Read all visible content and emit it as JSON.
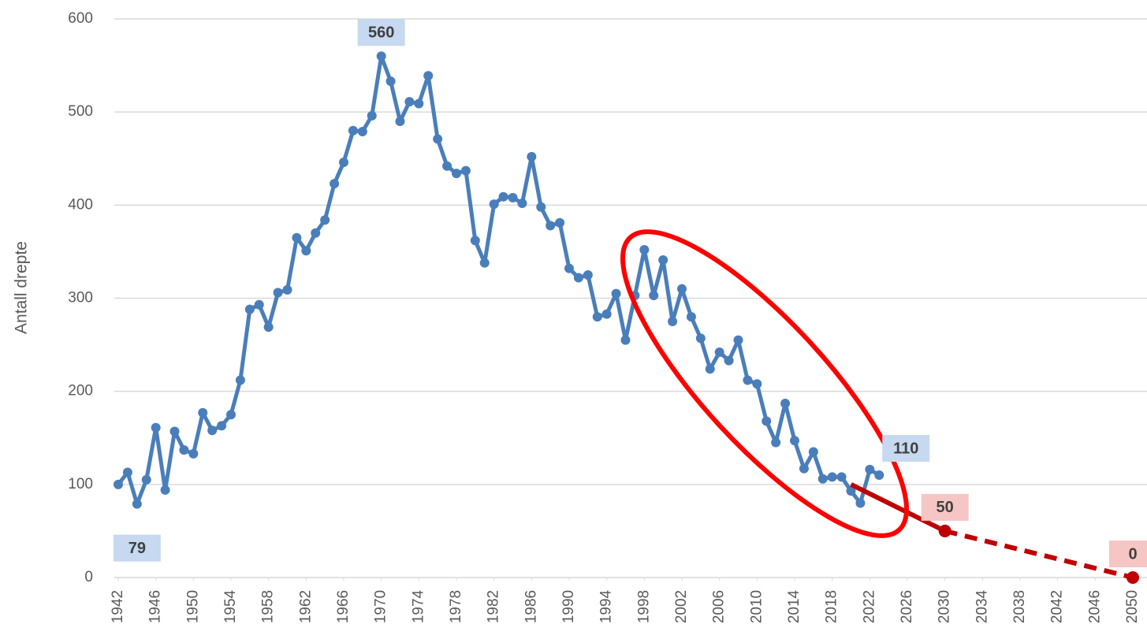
{
  "chart_data": {
    "type": "line",
    "y_label": "Antall drepte",
    "xlim": [
      1942,
      2050
    ],
    "ylim": [
      0,
      600
    ],
    "yticks": [
      0,
      100,
      200,
      300,
      400,
      500,
      600
    ],
    "xticks": [
      1942,
      1946,
      1950,
      1954,
      1958,
      1962,
      1966,
      1970,
      1974,
      1978,
      1982,
      1986,
      1990,
      1994,
      1998,
      2002,
      2006,
      2010,
      2014,
      2018,
      2022,
      2026,
      2030,
      2034,
      2038,
      2042,
      2046,
      2050
    ],
    "grid": true,
    "series": [
      {
        "color": "#4a7ebb",
        "markers": true,
        "x": [
          1942,
          1943,
          1944,
          1945,
          1946,
          1947,
          1948,
          1949,
          1950,
          1951,
          1952,
          1953,
          1954,
          1955,
          1956,
          1957,
          1958,
          1959,
          1960,
          1961,
          1962,
          1963,
          1964,
          1965,
          1966,
          1967,
          1968,
          1969,
          1970,
          1971,
          1972,
          1973,
          1974,
          1975,
          1976,
          1977,
          1978,
          1979,
          1980,
          1981,
          1982,
          1983,
          1984,
          1985,
          1986,
          1987,
          1988,
          1989,
          1990,
          1991,
          1992,
          1993,
          1994,
          1995,
          1996,
          1997,
          1998,
          1999,
          2000,
          2001,
          2002,
          2003,
          2004,
          2005,
          2006,
          2007,
          2008,
          2009,
          2010,
          2011,
          2012,
          2013,
          2014,
          2015,
          2016,
          2017,
          2018,
          2019,
          2020,
          2021,
          2022,
          2023
        ],
        "values": [
          100,
          113,
          79,
          105,
          161,
          94,
          157,
          137,
          133,
          177,
          158,
          163,
          175,
          212,
          288,
          293,
          269,
          306,
          309,
          365,
          351,
          370,
          384,
          423,
          446,
          480,
          479,
          496,
          560,
          533,
          490,
          511,
          509,
          539,
          471,
          442,
          434,
          437,
          362,
          338,
          401,
          409,
          408,
          402,
          452,
          398,
          378,
          381,
          332,
          322,
          325,
          280,
          283,
          305,
          255,
          303,
          352,
          303,
          341,
          275,
          310,
          280,
          257,
          224,
          242,
          233,
          255,
          212,
          208,
          168,
          145,
          187,
          147,
          117,
          135,
          106,
          108,
          108,
          93,
          80,
          116,
          110
        ],
        "labeled_points": [
          28,
          2,
          81
        ],
        "label_positions": [
          "above",
          "below",
          "right"
        ],
        "label_color": "#c6d9f1"
      },
      {
        "color": "#c00000",
        "markers": false,
        "x": [
          2020,
          2030,
          2050
        ],
        "values": [
          100,
          50,
          0
        ],
        "segment_styles": [
          "solid",
          "dashed"
        ],
        "labeled_points": [
          1,
          2
        ],
        "label_positions": [
          "above",
          "above"
        ],
        "label_color": "#f6c6c4"
      }
    ]
  }
}
